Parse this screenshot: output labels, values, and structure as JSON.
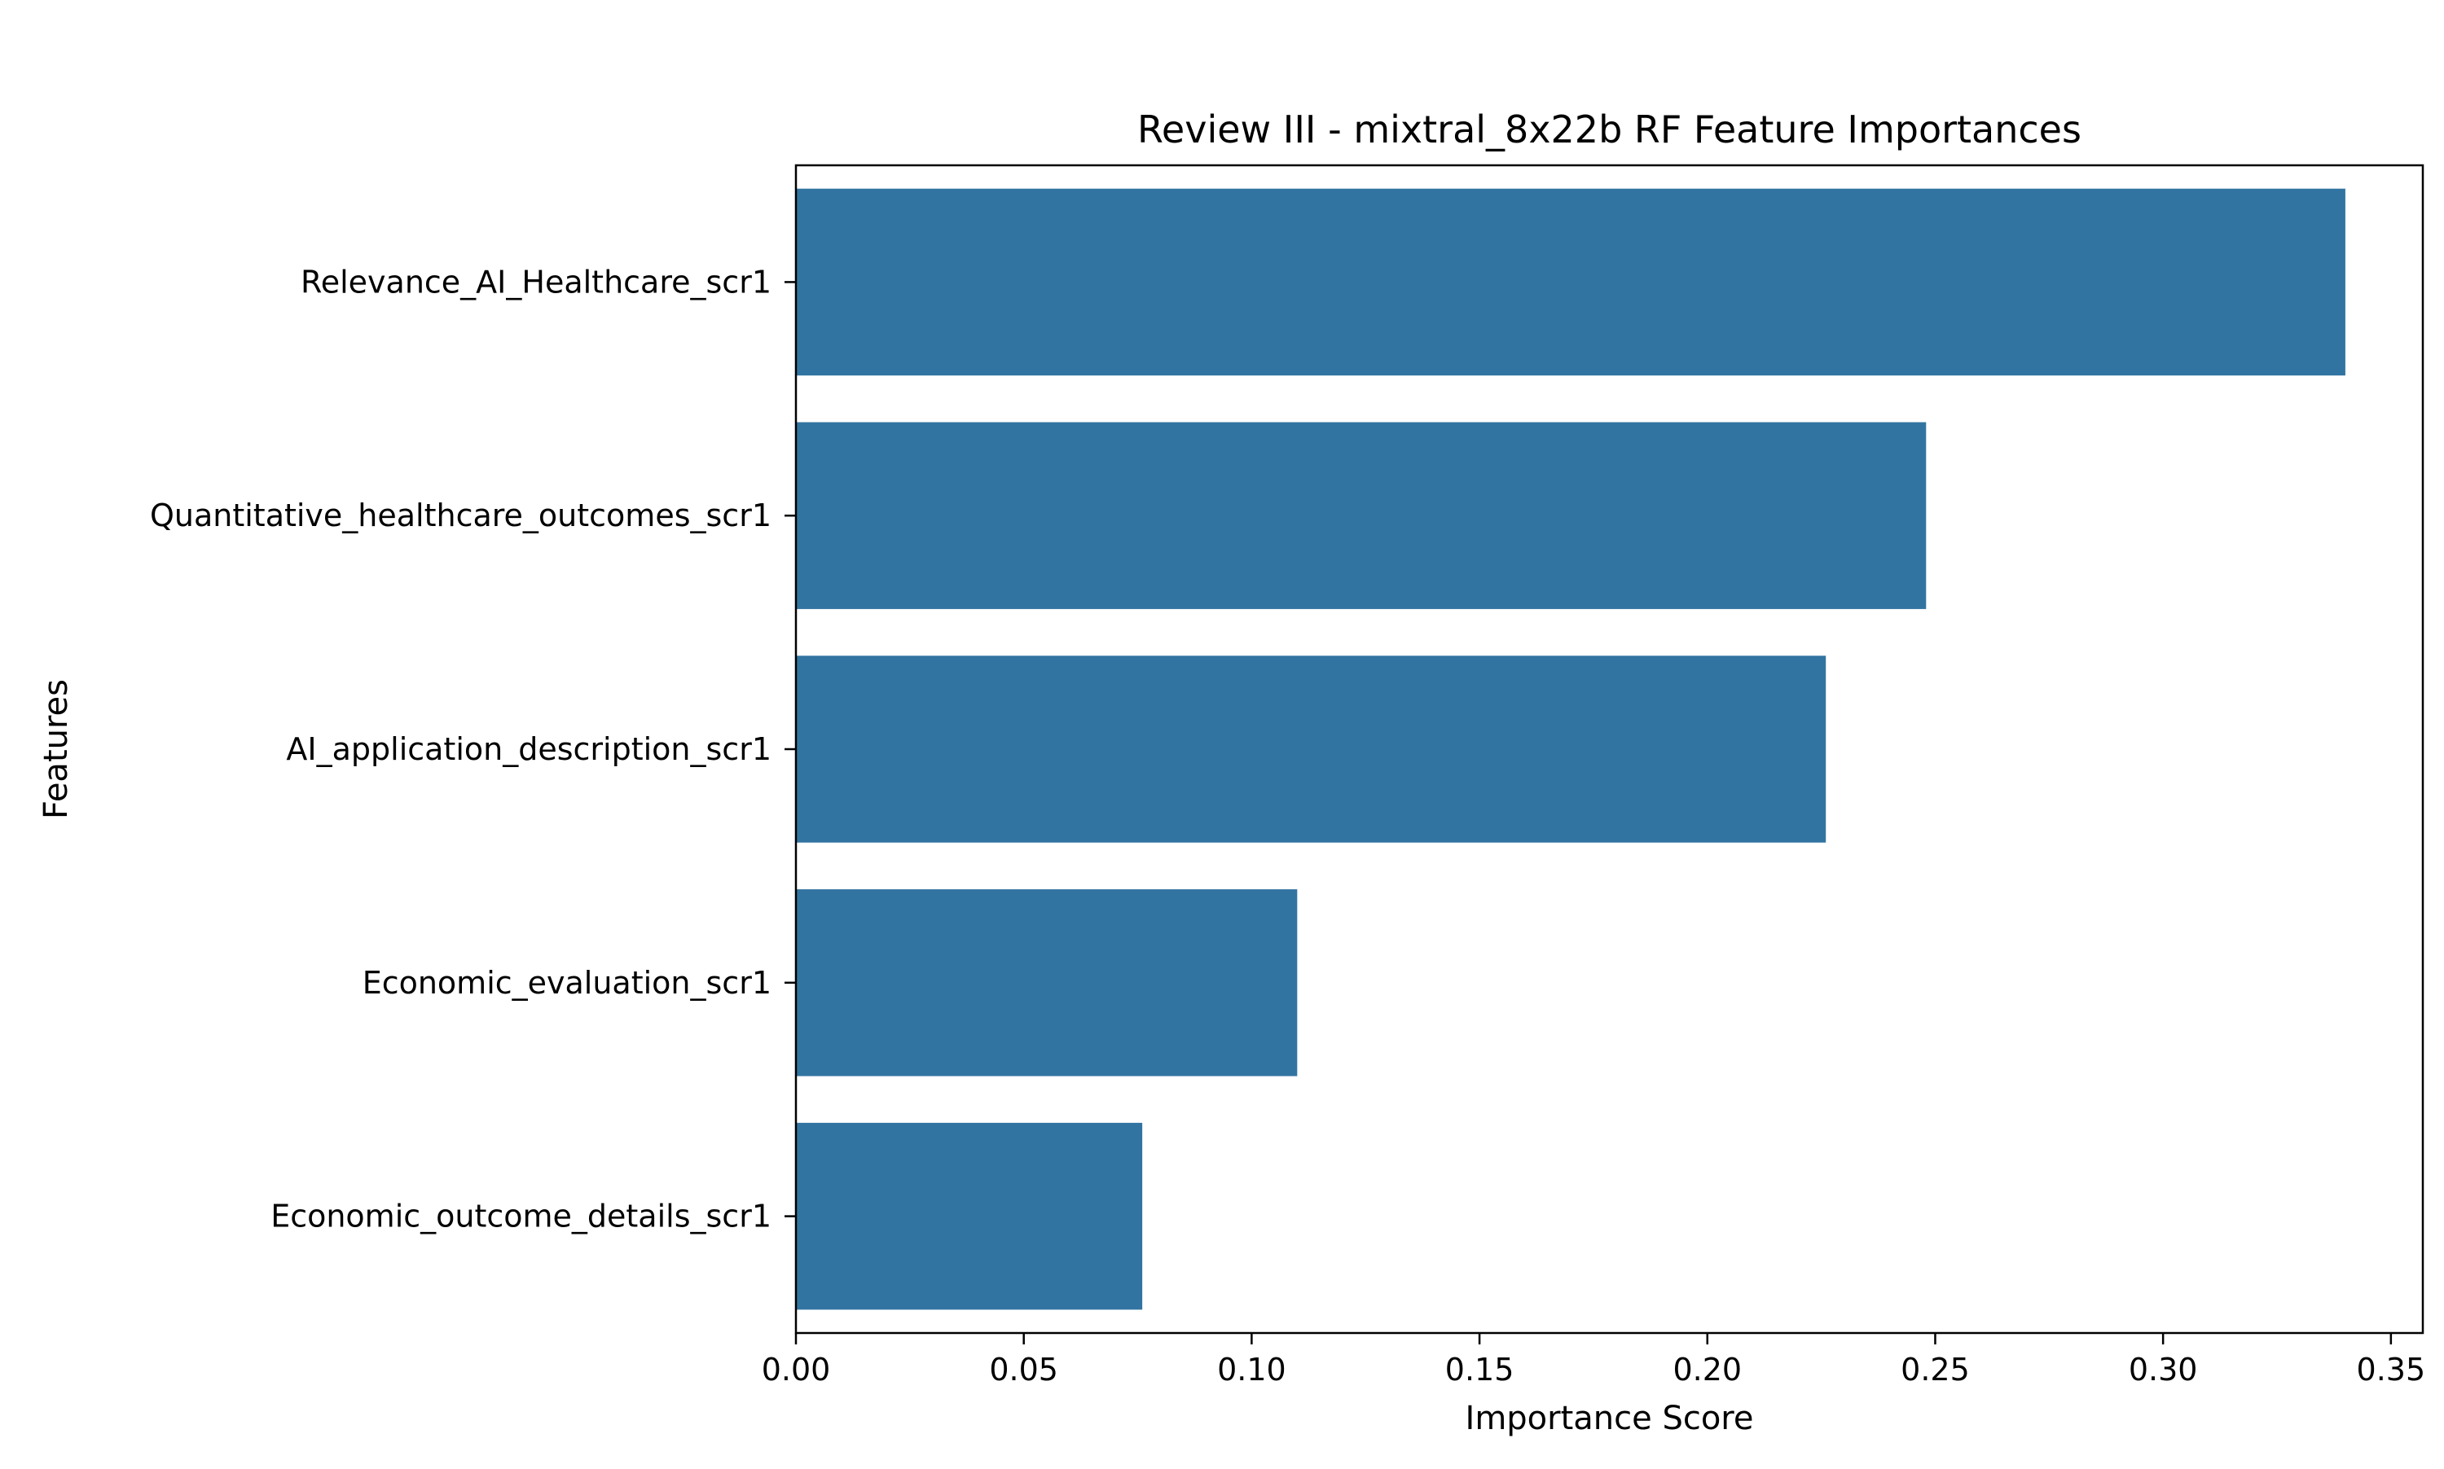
{
  "chart_data": {
    "type": "bar",
    "orientation": "horizontal",
    "title": "Review III - mixtral_8x22b RF Feature Importances",
    "xlabel": "Importance Score",
    "ylabel": "Features",
    "categories": [
      "Relevance_AI_Healthcare_scr1",
      "Quantitative_healthcare_outcomes_scr1",
      "AI_application_description_scr1",
      "Economic_evaluation_scr1",
      "Economic_outcome_details_scr1"
    ],
    "values": [
      0.34,
      0.248,
      0.226,
      0.11,
      0.076
    ],
    "xlim": [
      0,
      0.357
    ],
    "xticks": [
      0.0,
      0.05,
      0.1,
      0.15,
      0.2,
      0.25,
      0.3,
      0.35
    ],
    "xtick_labels": [
      "0.00",
      "0.05",
      "0.10",
      "0.15",
      "0.20",
      "0.25",
      "0.30",
      "0.35"
    ],
    "bar_color": "#3274a1",
    "grid": false,
    "legend": "none"
  }
}
